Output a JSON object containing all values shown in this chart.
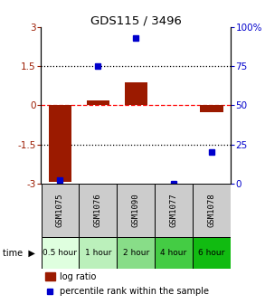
{
  "title": "GDS115 / 3496",
  "samples": [
    "GSM1075",
    "GSM1076",
    "GSM1090",
    "GSM1077",
    "GSM1078"
  ],
  "time_labels": [
    "0.5 hour",
    "1 hour",
    "2 hour",
    "4 hour",
    "6 hour"
  ],
  "time_colors": [
    "#dfffdf",
    "#bbf0bb",
    "#88dd88",
    "#44cc44",
    "#11bb11"
  ],
  "log_ratios": [
    -2.95,
    0.18,
    0.9,
    0.0,
    -0.25
  ],
  "percentile_ranks": [
    2,
    75,
    93,
    0,
    20
  ],
  "bar_color": "#9b1a00",
  "dot_color": "#0000cc",
  "ylim_left": [
    -3,
    3
  ],
  "ylim_right": [
    0,
    100
  ],
  "yticks_left": [
    -3,
    -1.5,
    0,
    1.5,
    3
  ],
  "yticks_right": [
    0,
    25,
    50,
    75,
    100
  ],
  "hlines": [
    -1.5,
    0,
    1.5
  ],
  "hline_styles": [
    "dotted",
    "dashed",
    "dotted"
  ],
  "hline_colors": [
    "black",
    "red",
    "black"
  ],
  "bg_color": "#ffffff",
  "sample_box_color": "#cccccc",
  "legend_log_label": "log ratio",
  "legend_pct_label": "percentile rank within the sample"
}
